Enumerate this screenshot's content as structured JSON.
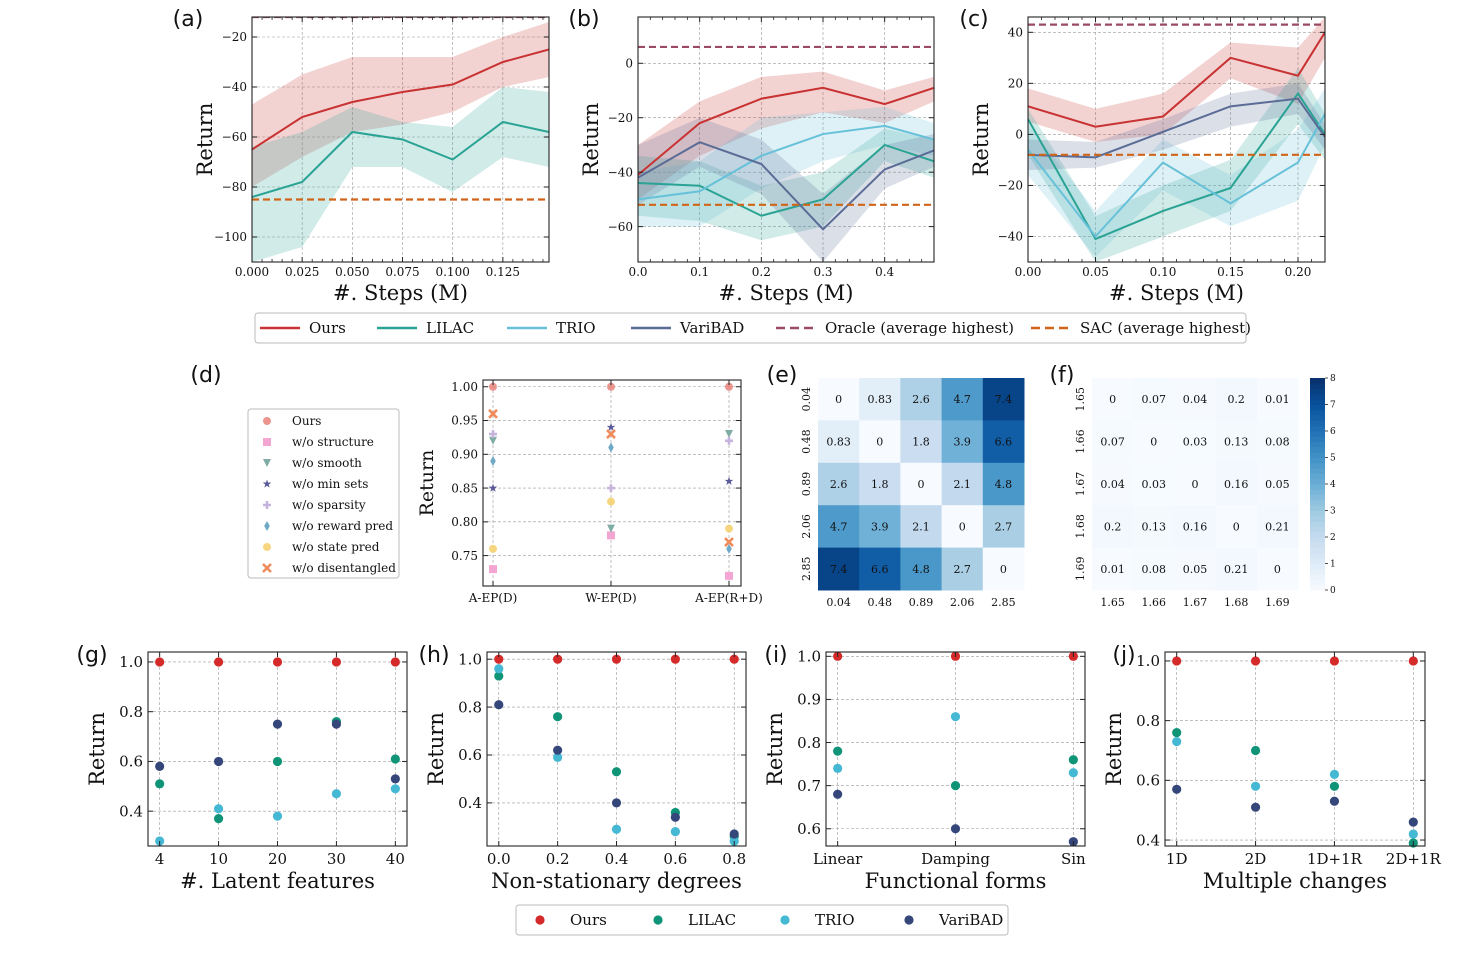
{
  "colors": {
    "ours": "#c83232",
    "lilac": "#2aa394",
    "trio": "#67c1d8",
    "varibad": "#5a6c96",
    "oracle": "#9b4a64",
    "sac": "#d0651a",
    "ours_scatter": "#d42a2a",
    "lilac_scatter": "#0f9478",
    "trio_scatter": "#45b8d3",
    "varibad_scatter": "#35477a"
  },
  "panel_labels": [
    "(a)",
    "(b)",
    "(c)",
    "(d)",
    "(e)",
    "(f)",
    "(g)",
    "(h)",
    "(i)",
    "(j)"
  ],
  "top_legend": [
    {
      "name": "Ours",
      "color": "ours",
      "style": "solid"
    },
    {
      "name": "LILAC",
      "color": "lilac",
      "style": "solid"
    },
    {
      "name": "TRIO",
      "color": "trio",
      "style": "solid"
    },
    {
      "name": "VariBAD",
      "color": "varibad",
      "style": "solid"
    },
    {
      "name": "Oracle (average highest)",
      "color": "oracle",
      "style": "dashed"
    },
    {
      "name": "SAC (average highest)",
      "color": "sac",
      "style": "dashed"
    }
  ],
  "bottom_legend": [
    {
      "name": "Ours",
      "color": "ours_scatter"
    },
    {
      "name": "LILAC",
      "color": "lilac_scatter"
    },
    {
      "name": "TRIO",
      "color": "trio_scatter"
    },
    {
      "name": "VariBAD",
      "color": "varibad_scatter"
    }
  ],
  "chart_data": [
    {
      "id": "a",
      "type": "line",
      "xlabel": "#. Steps (M)",
      "ylabel": "Return",
      "xlim": [
        0,
        0.148
      ],
      "ylim": [
        -110,
        -12
      ],
      "xticks": [
        0,
        0.025,
        0.05,
        0.075,
        0.1,
        0.125
      ],
      "xtick_labels": [
        "0.000",
        "0.025",
        "0.050",
        "0.075",
        "0.100",
        "0.125"
      ],
      "yticks": [
        -100,
        -80,
        -60,
        -40,
        -20
      ],
      "ytick_labels": [
        "−100",
        "−80",
        "−60",
        "−40",
        "−20"
      ],
      "x": [
        0,
        0.025,
        0.05,
        0.075,
        0.1,
        0.125,
        0.148
      ],
      "series": [
        {
          "name": "Ours",
          "color": "ours",
          "values": [
            -65,
            -52,
            -46,
            -42,
            -39,
            -30,
            -25
          ],
          "lower": [
            -80,
            -68,
            -58,
            -55,
            -50,
            -40,
            -36
          ],
          "upper": [
            -47,
            -35,
            -28,
            -28,
            -28,
            -20,
            -14
          ]
        },
        {
          "name": "LILAC",
          "color": "lilac",
          "values": [
            -84,
            -78,
            -58,
            -61,
            -69,
            -54,
            -58
          ],
          "lower": [
            -110,
            -104,
            -72,
            -72,
            -82,
            -68,
            -72
          ],
          "upper": [
            -64,
            -58,
            -48,
            -54,
            -56,
            -40,
            -42
          ]
        }
      ],
      "hlines": [
        {
          "name": "Oracle",
          "color": "oracle",
          "y": -12
        },
        {
          "name": "SAC",
          "color": "sac",
          "y": -85
        }
      ]
    },
    {
      "id": "b",
      "type": "line",
      "xlabel": "#. Steps (M)",
      "ylabel": "Return",
      "xlim": [
        0,
        0.48
      ],
      "ylim": [
        -73,
        17
      ],
      "xticks": [
        0,
        0.1,
        0.2,
        0.3,
        0.4
      ],
      "xtick_labels": [
        "0.0",
        "0.1",
        "0.2",
        "0.3",
        "0.4"
      ],
      "yticks": [
        -60,
        -40,
        -20,
        0
      ],
      "ytick_labels": [
        "−60",
        "−40",
        "−20",
        "0"
      ],
      "x": [
        0,
        0.1,
        0.2,
        0.3,
        0.4,
        0.48
      ],
      "series": [
        {
          "name": "Ours",
          "color": "ours",
          "values": [
            -41,
            -22,
            -13,
            -9,
            -15,
            -9
          ],
          "lower": [
            -50,
            -34,
            -24,
            -18,
            -22,
            -14
          ],
          "upper": [
            -30,
            -14,
            -5,
            -3,
            -10,
            -5
          ]
        },
        {
          "name": "LILAC",
          "color": "lilac",
          "values": [
            -44,
            -45,
            -56,
            -50,
            -30,
            -36
          ],
          "lower": [
            -56,
            -58,
            -65,
            -60,
            -36,
            -42
          ],
          "upper": [
            -34,
            -36,
            -45,
            -40,
            -24,
            -28
          ]
        },
        {
          "name": "TRIO",
          "color": "trio",
          "values": [
            -50,
            -47,
            -34,
            -26,
            -23,
            -28
          ],
          "lower": [
            -60,
            -60,
            -46,
            -36,
            -30,
            -34
          ],
          "upper": [
            -40,
            -36,
            -20,
            -18,
            -16,
            -22
          ]
        },
        {
          "name": "VariBAD",
          "color": "varibad",
          "values": [
            -42,
            -29,
            -37,
            -61,
            -39,
            -32
          ],
          "lower": [
            -52,
            -38,
            -48,
            -73,
            -46,
            -38
          ],
          "upper": [
            -30,
            -20,
            -28,
            -48,
            -30,
            -26
          ]
        }
      ],
      "hlines": [
        {
          "name": "Oracle",
          "color": "oracle",
          "y": 6
        },
        {
          "name": "SAC",
          "color": "sac",
          "y": -52
        }
      ]
    },
    {
      "id": "c",
      "type": "line",
      "xlabel": "#. Steps (M)",
      "ylabel": "Return",
      "xlim": [
        0,
        0.22
      ],
      "ylim": [
        -50,
        46
      ],
      "xticks": [
        0,
        0.05,
        0.1,
        0.15,
        0.2
      ],
      "xtick_labels": [
        "0.00",
        "0.05",
        "0.10",
        "0.15",
        "0.20"
      ],
      "yticks": [
        -40,
        -20,
        0,
        20,
        40
      ],
      "ytick_labels": [
        "−40",
        "−20",
        "0",
        "20",
        "40"
      ],
      "x": [
        0,
        0.05,
        0.1,
        0.15,
        0.2,
        0.22
      ],
      "series": [
        {
          "name": "Ours",
          "color": "ours",
          "values": [
            11,
            3,
            7,
            30,
            23,
            40
          ],
          "lower": [
            5,
            -3,
            0,
            22,
            12,
            30
          ],
          "upper": [
            18,
            10,
            16,
            36,
            34,
            46
          ]
        },
        {
          "name": "LILAC",
          "color": "lilac",
          "values": [
            6,
            -41,
            -30,
            -21,
            16,
            0
          ],
          "lower": [
            -8,
            -50,
            -40,
            -30,
            4,
            -10
          ],
          "upper": [
            10,
            -32,
            -20,
            -10,
            26,
            8
          ]
        },
        {
          "name": "TRIO",
          "color": "trio",
          "values": [
            -6,
            -40,
            -11,
            -27,
            -11,
            8
          ],
          "lower": [
            -16,
            -48,
            -22,
            -36,
            -26,
            -4
          ],
          "upper": [
            4,
            -30,
            -2,
            -16,
            2,
            18
          ]
        },
        {
          "name": "VariBAD",
          "color": "varibad",
          "values": [
            -8,
            -9,
            1,
            11,
            14,
            -1
          ],
          "lower": [
            -14,
            -13,
            -6,
            3,
            8,
            -6
          ],
          "upper": [
            -2,
            -3,
            6,
            16,
            20,
            4
          ]
        }
      ],
      "hlines": [
        {
          "name": "Oracle",
          "color": "oracle",
          "y": 43
        },
        {
          "name": "SAC",
          "color": "sac",
          "y": -8
        }
      ]
    },
    {
      "id": "d",
      "type": "scatter",
      "ylabel": "Return",
      "categories": [
        "A-EP(D)",
        "W-EP(D)",
        "A-EP(R+D)"
      ],
      "ylim": [
        0.705,
        1.01
      ],
      "yticks": [
        0.75,
        0.8,
        0.85,
        0.9,
        0.95,
        1.0
      ],
      "ytick_labels": [
        "0.75",
        "0.80",
        "0.85",
        "0.90",
        "0.95",
        "1.00"
      ],
      "series": [
        {
          "name": "Ours",
          "color": "#e8837a",
          "marker": "circle",
          "values": [
            1.0,
            1.0,
            1.0
          ]
        },
        {
          "name": "w/o structure",
          "color": "#f4a6d2",
          "marker": "square",
          "values": [
            0.73,
            0.78,
            0.72
          ]
        },
        {
          "name": "w/o smooth",
          "color": "#7fada6",
          "marker": "triangle",
          "values": [
            0.92,
            0.79,
            0.93
          ]
        },
        {
          "name": "w/o min sets",
          "color": "#5a5a9a",
          "marker": "star",
          "values": [
            0.85,
            0.94,
            0.86
          ]
        },
        {
          "name": "w/o sparsity",
          "color": "#c6b4dc",
          "marker": "plus",
          "values": [
            0.93,
            0.85,
            0.92
          ]
        },
        {
          "name": "w/o reward pred",
          "color": "#6fa9c6",
          "marker": "diamond",
          "values": [
            0.89,
            0.91,
            0.76
          ]
        },
        {
          "name": "w/o state pred",
          "color": "#f6cf6a",
          "marker": "circle",
          "values": [
            0.76,
            0.83,
            0.79
          ]
        },
        {
          "name": "w/o disentangled",
          "color": "#f08b5b",
          "marker": "x",
          "values": [
            0.96,
            0.93,
            0.77
          ]
        }
      ]
    },
    {
      "id": "e",
      "type": "heatmap",
      "labels": [
        "0.04",
        "0.48",
        "0.89",
        "2.06",
        "2.85"
      ],
      "matrix": [
        [
          0,
          0.83,
          2.6,
          4.7,
          7.4
        ],
        [
          0.83,
          0,
          1.8,
          3.9,
          6.6
        ],
        [
          2.6,
          1.8,
          0,
          2.1,
          4.8
        ],
        [
          4.7,
          3.9,
          2.1,
          0,
          2.7
        ],
        [
          7.4,
          6.6,
          4.8,
          2.7,
          0
        ]
      ],
      "cell_text": [
        [
          "0",
          "0.83",
          "2.6",
          "4.7",
          "7.4"
        ],
        [
          "0.83",
          "0",
          "1.8",
          "3.9",
          "6.6"
        ],
        [
          "2.6",
          "1.8",
          "0",
          "2.1",
          "4.8"
        ],
        [
          "4.7",
          "3.9",
          "2.1",
          "0",
          "2.7"
        ],
        [
          "7.4",
          "6.6",
          "4.8",
          "2.7",
          "0"
        ]
      ],
      "vmin": 0,
      "vmax": 8
    },
    {
      "id": "f",
      "type": "heatmap",
      "labels": [
        "1.65",
        "1.66",
        "1.67",
        "1.68",
        "1.69"
      ],
      "matrix": [
        [
          0,
          0.07,
          0.04,
          0.2,
          0.01
        ],
        [
          0.07,
          0,
          0.03,
          0.13,
          0.08
        ],
        [
          0.04,
          0.03,
          0,
          0.16,
          0.05
        ],
        [
          0.2,
          0.13,
          0.16,
          0,
          0.21
        ],
        [
          0.01,
          0.08,
          0.05,
          0.21,
          0
        ]
      ],
      "cell_text": [
        [
          "0",
          "0.07",
          "0.04",
          "0.2",
          "0.01"
        ],
        [
          "0.07",
          "0",
          "0.03",
          "0.13",
          "0.08"
        ],
        [
          "0.04",
          "0.03",
          "0",
          "0.16",
          "0.05"
        ],
        [
          "0.2",
          "0.13",
          "0.16",
          "0",
          "0.21"
        ],
        [
          "0.01",
          "0.08",
          "0.05",
          "0.21",
          "0"
        ]
      ],
      "vmin": 0,
      "vmax": 8,
      "colorbar_ticks": [
        "0",
        "1",
        "2",
        "3",
        "4",
        "5",
        "6",
        "7",
        "8"
      ]
    },
    {
      "id": "g",
      "type": "scatter",
      "xlabel": "#. Latent features",
      "ylabel": "Return",
      "categories": [
        "4",
        "10",
        "20",
        "30",
        "40"
      ],
      "ylim": [
        0.26,
        1.04
      ],
      "yticks": [
        0.4,
        0.6,
        0.8,
        1.0
      ],
      "ytick_labels": [
        "0.4",
        "0.6",
        "0.8",
        "1.0"
      ],
      "series": [
        {
          "name": "Ours",
          "color": "ours_scatter",
          "values": [
            1.0,
            1.0,
            1.0,
            1.0,
            1.0
          ]
        },
        {
          "name": "LILAC",
          "color": "lilac_scatter",
          "values": [
            0.51,
            0.37,
            0.6,
            0.76,
            0.61
          ]
        },
        {
          "name": "TRIO",
          "color": "trio_scatter",
          "values": [
            0.28,
            0.41,
            0.38,
            0.47,
            0.49
          ]
        },
        {
          "name": "VariBAD",
          "color": "varibad_scatter",
          "values": [
            0.58,
            0.6,
            0.75,
            0.75,
            0.53
          ]
        }
      ]
    },
    {
      "id": "h",
      "type": "scatter",
      "xlabel": "Non-stationary degrees",
      "ylabel": "Return",
      "x": [
        0,
        0.2,
        0.4,
        0.6,
        0.8
      ],
      "xlim": [
        -0.04,
        0.84
      ],
      "xticks": [
        0,
        0.2,
        0.4,
        0.6,
        0.8
      ],
      "xtick_labels": [
        "0.0",
        "0.2",
        "0.4",
        "0.6",
        "0.8"
      ],
      "ylim": [
        0.22,
        1.03
      ],
      "yticks": [
        0.4,
        0.6,
        0.8,
        1.0
      ],
      "ytick_labels": [
        "0.4",
        "0.6",
        "0.8",
        "1.0"
      ],
      "series": [
        {
          "name": "Ours",
          "color": "ours_scatter",
          "values": [
            1.0,
            1.0,
            1.0,
            1.0,
            1.0
          ]
        },
        {
          "name": "LILAC",
          "color": "lilac_scatter",
          "values": [
            0.93,
            0.76,
            0.53,
            0.36,
            0.26
          ]
        },
        {
          "name": "TRIO",
          "color": "trio_scatter",
          "values": [
            0.96,
            0.59,
            0.29,
            0.28,
            0.24
          ]
        },
        {
          "name": "VariBAD",
          "color": "varibad_scatter",
          "values": [
            0.81,
            0.62,
            0.4,
            0.34,
            0.27
          ]
        }
      ]
    },
    {
      "id": "i",
      "type": "scatter",
      "xlabel": "Functional forms",
      "ylabel": "Return",
      "categories": [
        "Linear",
        "Damping",
        "Sin"
      ],
      "ylim": [
        0.56,
        1.01
      ],
      "yticks": [
        0.6,
        0.7,
        0.8,
        0.9,
        1.0
      ],
      "ytick_labels": [
        "0.6",
        "0.7",
        "0.8",
        "0.9",
        "1.0"
      ],
      "series": [
        {
          "name": "Ours",
          "color": "ours_scatter",
          "values": [
            1.0,
            1.0,
            1.0
          ]
        },
        {
          "name": "LILAC",
          "color": "lilac_scatter",
          "values": [
            0.78,
            0.7,
            0.76
          ]
        },
        {
          "name": "TRIO",
          "color": "trio_scatter",
          "values": [
            0.74,
            0.86,
            0.73
          ]
        },
        {
          "name": "VariBAD",
          "color": "varibad_scatter",
          "values": [
            0.68,
            0.6,
            0.57
          ]
        }
      ]
    },
    {
      "id": "j",
      "type": "scatter",
      "xlabel": "Multiple  changes",
      "ylabel": "Return",
      "categories": [
        "1D",
        "2D",
        "1D+1R",
        "2D+1R"
      ],
      "ylim": [
        0.38,
        1.03
      ],
      "yticks": [
        0.4,
        0.6,
        0.8,
        1.0
      ],
      "ytick_labels": [
        "0.4",
        "0.6",
        "0.8",
        "1.0"
      ],
      "series": [
        {
          "name": "Ours",
          "color": "ours_scatter",
          "values": [
            1.0,
            1.0,
            1.0,
            1.0
          ]
        },
        {
          "name": "LILAC",
          "color": "lilac_scatter",
          "values": [
            0.76,
            0.7,
            0.58,
            0.39
          ]
        },
        {
          "name": "TRIO",
          "color": "trio_scatter",
          "values": [
            0.73,
            0.58,
            0.62,
            0.42
          ]
        },
        {
          "name": "VariBAD",
          "color": "varibad_scatter",
          "values": [
            0.57,
            0.51,
            0.53,
            0.46
          ]
        }
      ]
    }
  ]
}
